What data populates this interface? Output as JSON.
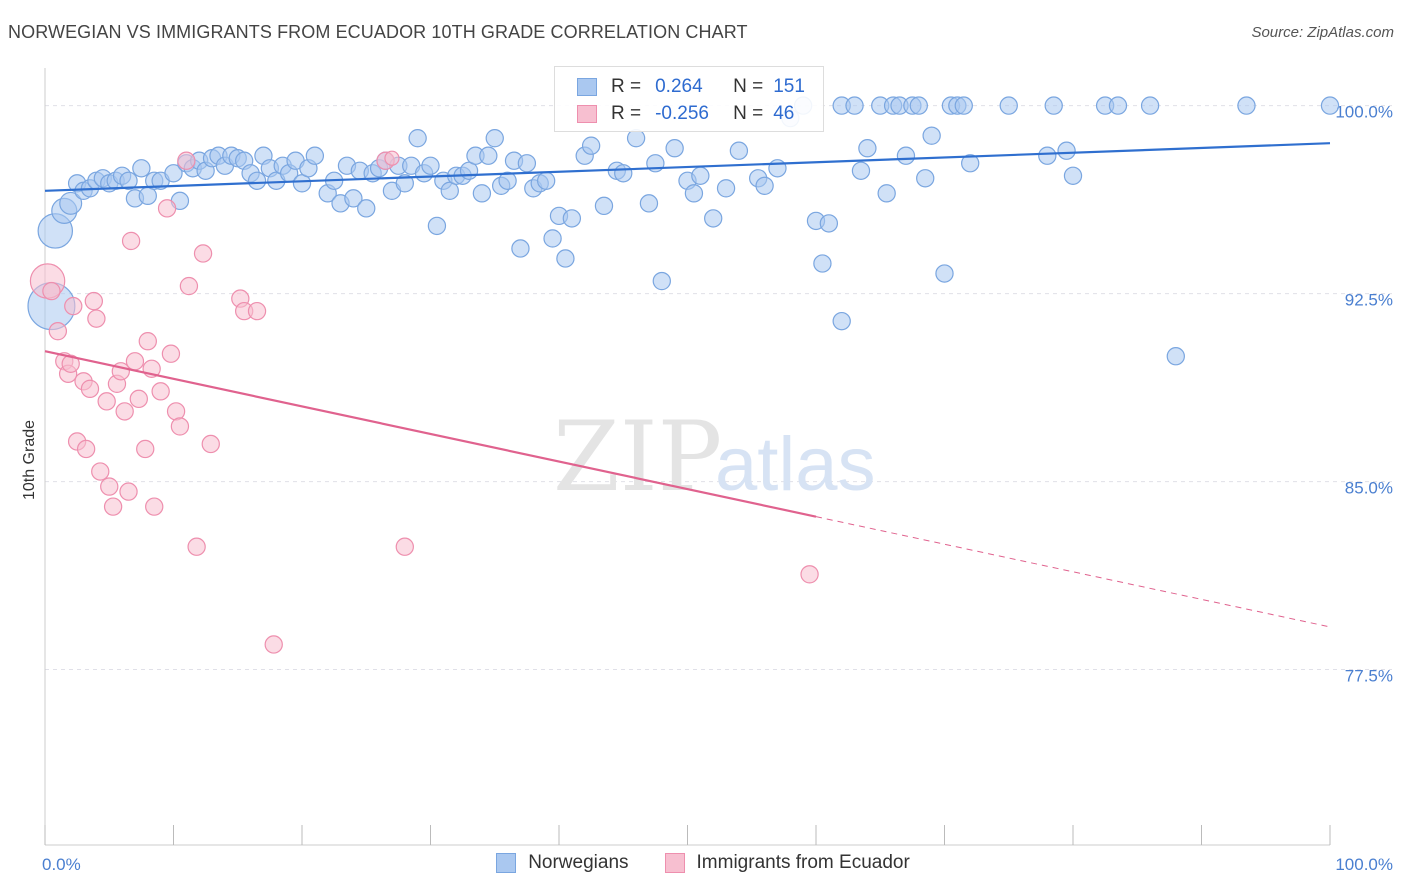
{
  "title": "NORWEGIAN VS IMMIGRANTS FROM ECUADOR 10TH GRADE CORRELATION CHART",
  "source": "Source: ZipAtlas.com",
  "watermark": {
    "zip": "ZIP",
    "atlas": "atlas"
  },
  "colors": {
    "blue_fill": "#aac8f0",
    "blue_stroke": "#7aa6e0",
    "blue_line": "#2f6fcf",
    "pink_fill": "#f7bfd0",
    "pink_stroke": "#ee8fae",
    "pink_line": "#e0628e",
    "tick_text": "#4a7fd0",
    "grid": "#e0e0e8"
  },
  "legend": {
    "rows": [
      {
        "r_label": "R =",
        "r_value": "0.264",
        "n_label": "N =",
        "n_value": "151"
      },
      {
        "r_label": "R =",
        "r_value": "-0.256",
        "n_label": "N =",
        "n_value": "46"
      }
    ]
  },
  "bottom_legend": [
    "Norwegians",
    "Immigrants from Ecuador"
  ],
  "chart_data": {
    "type": "scatter",
    "title": "NORWEGIAN VS IMMIGRANTS FROM ECUADOR 10TH GRADE CORRELATION CHART",
    "xlabel": "",
    "ylabel": "10th Grade",
    "xlim": [
      0,
      100
    ],
    "ylim": [
      70.5,
      101.5
    ],
    "x_ticks": [
      "0.0%",
      "100.0%"
    ],
    "y_ticks": [
      {
        "value": 100.0,
        "label": "100.0%"
      },
      {
        "value": 92.5,
        "label": "92.5%"
      },
      {
        "value": 85.0,
        "label": "85.0%"
      },
      {
        "value": 77.5,
        "label": "77.5%"
      }
    ],
    "grid": true,
    "legend_position": "top-center",
    "series": [
      {
        "name": "Norwegians",
        "R": 0.264,
        "N": 151,
        "trend": {
          "x": [
            0,
            100
          ],
          "y": [
            96.6,
            98.5
          ],
          "dashed_from": null
        },
        "points": [
          [
            0.5,
            92.0,
            30
          ],
          [
            0.8,
            95.0,
            22
          ],
          [
            1.5,
            95.8,
            16
          ],
          [
            2.0,
            96.1,
            14
          ],
          [
            2.5,
            96.9,
            11
          ],
          [
            3.0,
            96.6,
            11
          ],
          [
            3.5,
            96.7,
            11
          ],
          [
            4.0,
            97.0,
            11
          ],
          [
            4.5,
            97.1,
            11
          ],
          [
            5.0,
            96.9,
            11
          ],
          [
            5.5,
            97.0,
            11
          ],
          [
            6.0,
            97.2,
            11
          ],
          [
            6.5,
            97.0,
            11
          ],
          [
            7.0,
            96.3,
            11
          ],
          [
            7.5,
            97.5,
            11
          ],
          [
            8.0,
            96.4,
            11
          ],
          [
            8.5,
            97.0,
            11
          ],
          [
            9.0,
            97.0,
            11
          ],
          [
            10.0,
            97.3,
            11
          ],
          [
            10.5,
            96.2,
            11
          ],
          [
            11.0,
            97.7,
            11
          ],
          [
            11.5,
            97.5,
            11
          ],
          [
            12.0,
            97.8,
            11
          ],
          [
            12.5,
            97.4,
            11
          ],
          [
            13.0,
            97.9,
            11
          ],
          [
            13.5,
            98.0,
            11
          ],
          [
            14.0,
            97.6,
            11
          ],
          [
            14.5,
            98.0,
            11
          ],
          [
            15.0,
            97.9,
            11
          ],
          [
            15.5,
            97.8,
            11
          ],
          [
            16.0,
            97.3,
            11
          ],
          [
            16.5,
            97.0,
            11
          ],
          [
            17.0,
            98.0,
            11
          ],
          [
            17.5,
            97.5,
            11
          ],
          [
            18.0,
            97.0,
            11
          ],
          [
            18.5,
            97.6,
            11
          ],
          [
            19.0,
            97.3,
            11
          ],
          [
            19.5,
            97.8,
            11
          ],
          [
            20.0,
            96.9,
            11
          ],
          [
            20.5,
            97.5,
            11
          ],
          [
            21.0,
            98.0,
            11
          ],
          [
            22.0,
            96.5,
            11
          ],
          [
            22.5,
            97.0,
            11
          ],
          [
            23.0,
            96.1,
            11
          ],
          [
            23.5,
            97.6,
            11
          ],
          [
            24.0,
            96.3,
            11
          ],
          [
            24.5,
            97.4,
            11
          ],
          [
            25.0,
            95.9,
            11
          ],
          [
            25.5,
            97.3,
            11
          ],
          [
            26.0,
            97.5,
            11
          ],
          [
            26.5,
            97.8,
            11
          ],
          [
            27.0,
            96.6,
            11
          ],
          [
            27.5,
            97.6,
            11
          ],
          [
            28.0,
            96.9,
            11
          ],
          [
            28.5,
            97.6,
            11
          ],
          [
            29.0,
            98.7,
            11
          ],
          [
            29.5,
            97.3,
            11
          ],
          [
            30.0,
            97.6,
            11
          ],
          [
            30.5,
            95.2,
            11
          ],
          [
            31.0,
            97.0,
            11
          ],
          [
            31.5,
            96.6,
            11
          ],
          [
            32.0,
            97.2,
            11
          ],
          [
            32.5,
            97.2,
            11
          ],
          [
            33.0,
            97.4,
            11
          ],
          [
            33.5,
            98.0,
            11
          ],
          [
            34.0,
            96.5,
            11
          ],
          [
            34.5,
            98.0,
            11
          ],
          [
            35.0,
            98.7,
            11
          ],
          [
            35.5,
            96.8,
            11
          ],
          [
            36.0,
            97.0,
            11
          ],
          [
            36.5,
            97.8,
            11
          ],
          [
            37.0,
            94.3,
            11
          ],
          [
            37.5,
            97.7,
            11
          ],
          [
            38.0,
            96.7,
            11
          ],
          [
            38.5,
            96.9,
            11
          ],
          [
            39.0,
            97.0,
            11
          ],
          [
            39.5,
            94.7,
            11
          ],
          [
            40.0,
            95.6,
            11
          ],
          [
            40.5,
            93.9,
            11
          ],
          [
            41.0,
            95.5,
            11
          ],
          [
            42.0,
            98.0,
            11
          ],
          [
            42.5,
            98.4,
            11
          ],
          [
            43.5,
            96.0,
            11
          ],
          [
            44.5,
            97.4,
            11
          ],
          [
            45.0,
            97.3,
            11
          ],
          [
            46.0,
            98.7,
            11
          ],
          [
            47.0,
            96.1,
            11
          ],
          [
            47.5,
            97.7,
            11
          ],
          [
            48.0,
            93.0,
            11
          ],
          [
            49.0,
            98.3,
            11
          ],
          [
            50.0,
            97.0,
            11
          ],
          [
            50.5,
            96.5,
            11
          ],
          [
            51.0,
            97.2,
            11
          ],
          [
            52.0,
            95.5,
            11
          ],
          [
            53.0,
            96.7,
            11
          ],
          [
            54.0,
            98.2,
            11
          ],
          [
            55.5,
            97.1,
            11
          ],
          [
            56.0,
            96.8,
            11
          ],
          [
            57.0,
            97.5,
            11
          ],
          [
            58.0,
            99.5,
            11
          ],
          [
            59.0,
            100.0,
            11
          ],
          [
            60.0,
            95.4,
            11
          ],
          [
            60.5,
            93.7,
            11
          ],
          [
            61.0,
            95.3,
            11
          ],
          [
            62.0,
            100.0,
            11
          ],
          [
            63.0,
            100.0,
            11
          ],
          [
            63.5,
            97.4,
            11
          ],
          [
            64.0,
            98.3,
            11
          ],
          [
            65.0,
            100.0,
            11
          ],
          [
            65.5,
            96.5,
            11
          ],
          [
            66.0,
            100.0,
            11
          ],
          [
            66.5,
            100.0,
            11
          ],
          [
            67.0,
            98.0,
            11
          ],
          [
            67.5,
            100.0,
            11
          ],
          [
            68.0,
            100.0,
            11
          ],
          [
            68.5,
            97.1,
            11
          ],
          [
            69.0,
            98.8,
            11
          ],
          [
            70.0,
            93.3,
            11
          ],
          [
            70.5,
            100.0,
            11
          ],
          [
            71.0,
            100.0,
            11
          ],
          [
            71.5,
            100.0,
            11
          ],
          [
            72.0,
            97.7,
            11
          ],
          [
            75.0,
            100.0,
            11
          ],
          [
            78.0,
            98.0,
            11
          ],
          [
            78.5,
            100.0,
            11
          ],
          [
            79.5,
            98.2,
            11
          ],
          [
            80.0,
            97.2,
            11
          ],
          [
            82.5,
            100.0,
            11
          ],
          [
            83.5,
            100.0,
            11
          ],
          [
            86.0,
            100.0,
            11
          ],
          [
            88.0,
            90.0,
            11
          ],
          [
            93.5,
            100.0,
            11
          ],
          [
            100.0,
            100.0,
            11
          ],
          [
            62.0,
            91.4,
            11
          ]
        ]
      },
      {
        "name": "Immigrants from Ecuador",
        "R": -0.256,
        "N": 46,
        "trend": {
          "x": [
            0,
            100
          ],
          "y": [
            90.2,
            79.2
          ],
          "dashed_from": 60
        },
        "points": [
          [
            0.2,
            93.0,
            22
          ],
          [
            0.5,
            92.6,
            11
          ],
          [
            1.0,
            91.0,
            11
          ],
          [
            1.5,
            89.8,
            11
          ],
          [
            1.8,
            89.3,
            11
          ],
          [
            2.0,
            89.7,
            11
          ],
          [
            2.2,
            92.0,
            11
          ],
          [
            2.5,
            86.6,
            11
          ],
          [
            3.0,
            89.0,
            11
          ],
          [
            3.2,
            86.3,
            11
          ],
          [
            3.5,
            88.7,
            11
          ],
          [
            3.8,
            92.2,
            11
          ],
          [
            4.0,
            91.5,
            11
          ],
          [
            4.3,
            85.4,
            11
          ],
          [
            4.8,
            88.2,
            11
          ],
          [
            5.0,
            84.8,
            11
          ],
          [
            5.3,
            84.0,
            11
          ],
          [
            5.6,
            88.9,
            11
          ],
          [
            5.9,
            89.4,
            11
          ],
          [
            6.2,
            87.8,
            11
          ],
          [
            6.5,
            84.6,
            11
          ],
          [
            6.7,
            94.6,
            11
          ],
          [
            7.0,
            89.8,
            11
          ],
          [
            7.3,
            88.3,
            11
          ],
          [
            7.8,
            86.3,
            11
          ],
          [
            8.0,
            90.6,
            11
          ],
          [
            8.3,
            89.5,
            11
          ],
          [
            8.5,
            84.0,
            11
          ],
          [
            9.0,
            88.6,
            11
          ],
          [
            9.5,
            95.9,
            11
          ],
          [
            9.8,
            90.1,
            11
          ],
          [
            10.2,
            87.8,
            11
          ],
          [
            10.5,
            87.2,
            11
          ],
          [
            11.0,
            97.8,
            11
          ],
          [
            11.2,
            92.8,
            11
          ],
          [
            11.8,
            82.4,
            11
          ],
          [
            12.3,
            94.1,
            11
          ],
          [
            12.9,
            86.5,
            11
          ],
          [
            15.2,
            92.3,
            11
          ],
          [
            15.5,
            91.8,
            11
          ],
          [
            16.5,
            91.8,
            11
          ],
          [
            17.8,
            78.5,
            11
          ],
          [
            26.5,
            97.8,
            11
          ],
          [
            28.0,
            82.4,
            11
          ],
          [
            59.5,
            81.3,
            11
          ],
          [
            27.0,
            97.9,
            9
          ]
        ]
      }
    ]
  }
}
